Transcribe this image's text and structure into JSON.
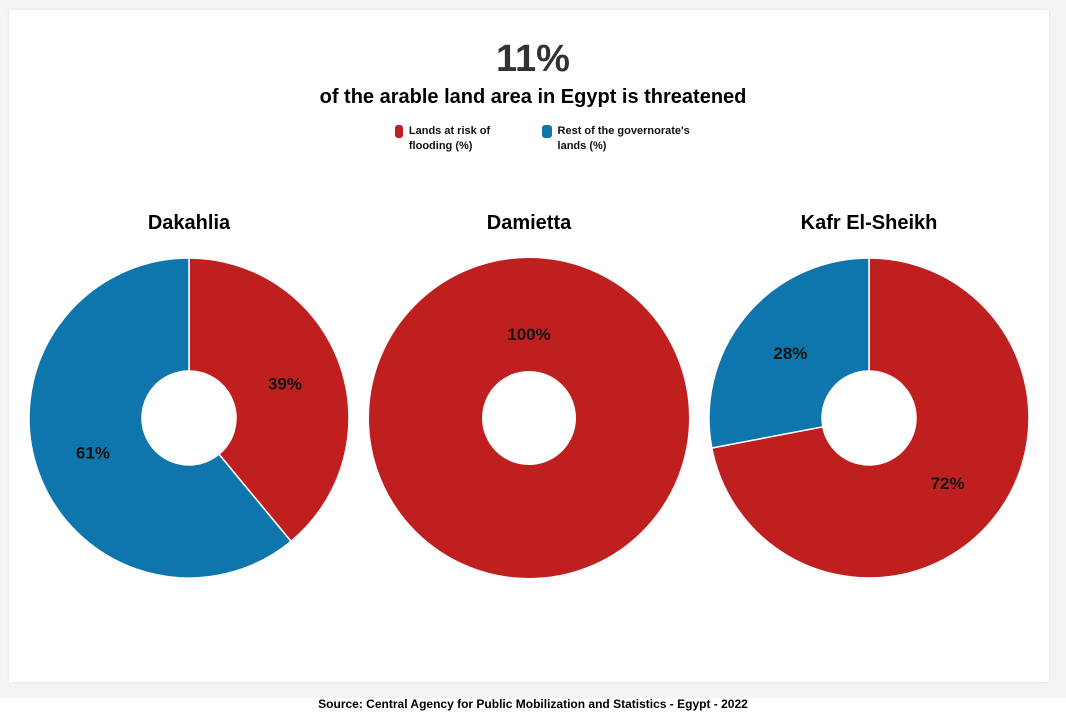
{
  "header": {
    "headline": "11%",
    "subtitle": "of the arable land area in Egypt is threatened"
  },
  "source": "Source: Central Agency for Public Mobilization and Statistics - Egypt - 2022",
  "chart_data": {
    "type": "pie",
    "variant": "donut",
    "legend": [
      {
        "label": "Lands at risk of flooding (%)",
        "color": "#c01f20"
      },
      {
        "label": "Rest of the governorate's lands (%)",
        "color": "#0e76ac"
      }
    ],
    "legend_placement": "top-center",
    "charts": [
      {
        "title": "Dakahlia",
        "series": [
          {
            "name": "Lands at risk of flooding (%)",
            "value": 39,
            "label": "39%"
          },
          {
            "name": "Rest of the governorate's lands (%)",
            "value": 61,
            "label": "61%"
          }
        ]
      },
      {
        "title": "Damietta",
        "series": [
          {
            "name": "Lands at risk of flooding (%)",
            "value": 100,
            "label": "100%"
          },
          {
            "name": "Rest of the governorate's lands (%)",
            "value": 0,
            "label": ""
          }
        ]
      },
      {
        "title": "Kafr El-Sheikh",
        "series": [
          {
            "name": "Lands at risk of flooding (%)",
            "value": 72,
            "label": "72%"
          },
          {
            "name": "Rest of the governorate's lands (%)",
            "value": 28,
            "label": "28%"
          }
        ]
      }
    ]
  }
}
